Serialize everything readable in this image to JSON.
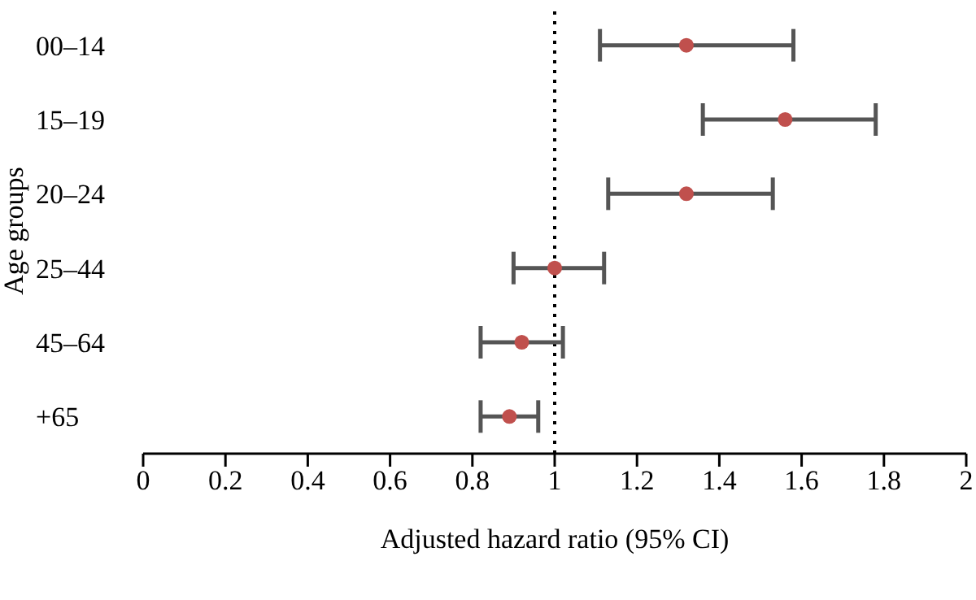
{
  "chart_data": {
    "type": "scatter",
    "orientation": "horizontal",
    "xlabel": "Adjusted hazard ratio (95% CI)",
    "ylabel": "Age groups",
    "categories": [
      "00–14",
      "15–19",
      "20–24",
      "25–44",
      "45–64",
      "+65"
    ],
    "values": [
      1.32,
      1.56,
      1.32,
      1.0,
      0.92,
      0.89
    ],
    "errors": [
      [
        1.11,
        1.58
      ],
      [
        1.36,
        1.78
      ],
      [
        1.13,
        1.53
      ],
      [
        0.9,
        1.12
      ],
      [
        0.82,
        1.02
      ],
      [
        0.82,
        0.96
      ]
    ],
    "color": "#c0504d",
    "marker": "circle",
    "grid": false,
    "legend": false,
    "xlim": [
      0,
      2
    ],
    "xticks": [
      0,
      0.2,
      0.4,
      0.6,
      0.8,
      1,
      1.2,
      1.4,
      1.6,
      1.8,
      2
    ],
    "ref_lines": [
      {
        "axis": "x",
        "value": 1,
        "line_style": "dotted",
        "color": "#000000"
      }
    ]
  }
}
